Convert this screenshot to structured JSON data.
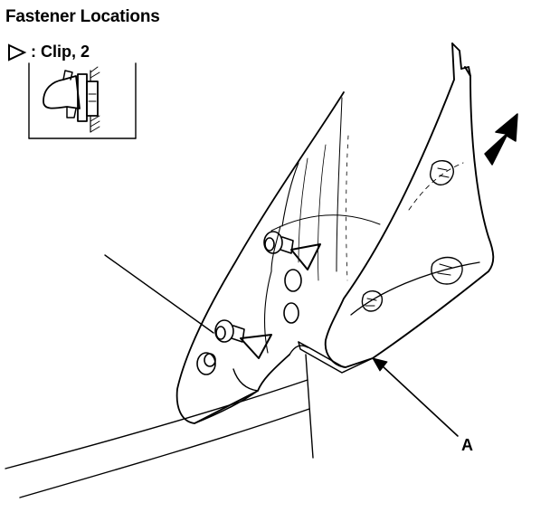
{
  "title": "Fastener Locations",
  "legend": {
    "symbol": "triangle-outline-icon",
    "text": ": Clip, 2"
  },
  "callout": {
    "label": "A"
  },
  "colors": {
    "ink": "#000000",
    "background": "#ffffff"
  }
}
